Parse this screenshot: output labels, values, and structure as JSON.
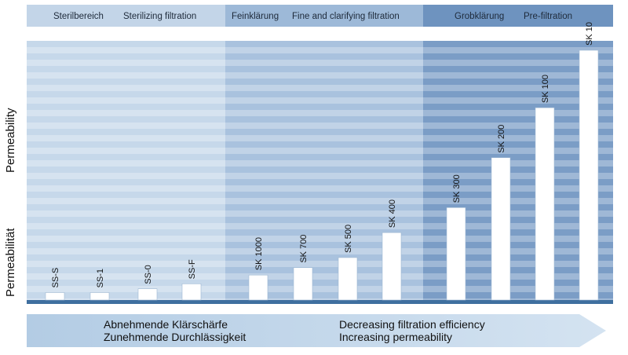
{
  "chart_data": {
    "type": "bar",
    "ylabel_en": "Permeability",
    "ylabel_de": "Permeabilität",
    "ylim": [
      0,
      100
    ],
    "grid": true,
    "categories": [
      "SS-S",
      "SS-1",
      "SS-0",
      "SS-F",
      "SK 1000",
      "SK 700",
      "SK 500",
      "SK 400",
      "SK 300",
      "SK 200",
      "SK 100",
      "SK 10"
    ],
    "values": [
      3,
      3,
      4.5,
      6.5,
      10,
      13,
      17,
      27,
      37,
      57,
      77,
      100
    ],
    "zones": [
      {
        "label_de": "Sterilbereich",
        "label_en": "Sterilizing filtration",
        "color": "#c3d5e8"
      },
      {
        "label_de": "Feinklärung",
        "label_en": "Fine and clarifying filtration",
        "color": "#9db9d8"
      },
      {
        "label_de": "Grobklärung",
        "label_en": "Pre-filtration",
        "color": "#6e93bf"
      }
    ],
    "arrow": {
      "de_line1": "Abnehmende Klärschärfe",
      "de_line2": "Zunehmende Durchlässigkeit",
      "en_line1": "Decreasing filtration efficiency",
      "en_line2": "Increasing permeability"
    }
  }
}
